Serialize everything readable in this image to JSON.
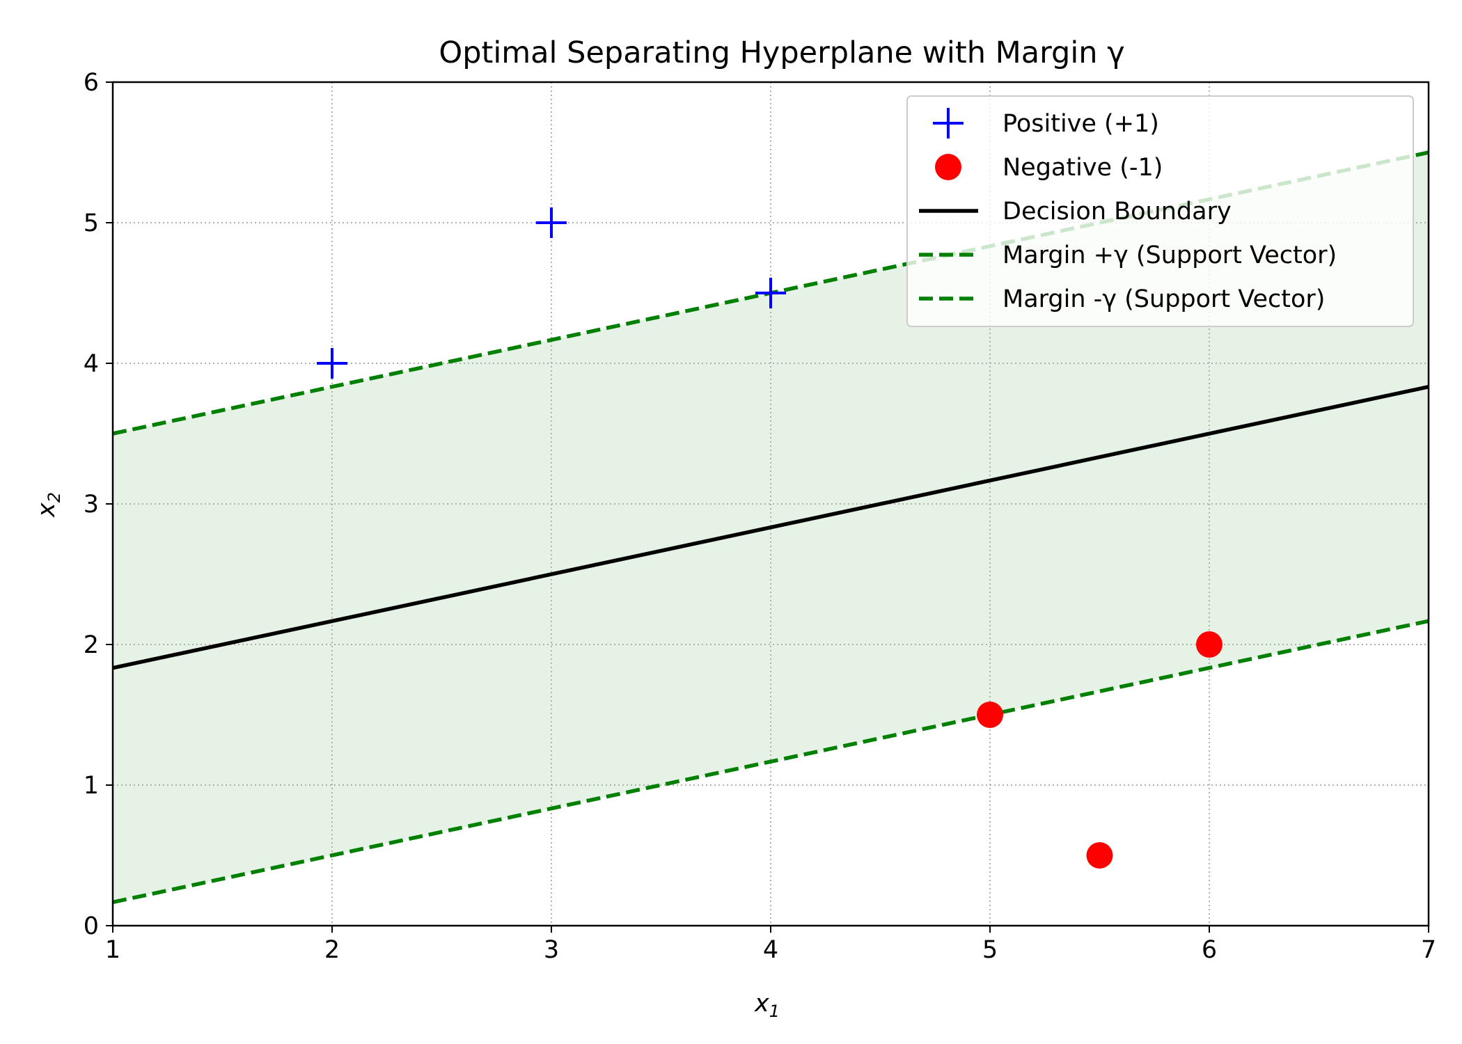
{
  "chart_data": {
    "type": "scatter",
    "title": "Optimal Separating Hyperplane with Margin γ",
    "xlabel": {
      "base": "x",
      "sub": "1"
    },
    "ylabel": {
      "base": "x",
      "sub": "2"
    },
    "xlim": [
      1,
      7
    ],
    "ylim": [
      0,
      6
    ],
    "xticks": [
      "1",
      "2",
      "3",
      "4",
      "5",
      "6",
      "7"
    ],
    "yticks": [
      "0",
      "1",
      "2",
      "3",
      "4",
      "5",
      "6"
    ],
    "grid": true,
    "legend_position": "top-right",
    "margin_fill_color": "#e5f2e5",
    "points": [
      {
        "series": "Positive (+1)",
        "marker": "plus",
        "color": "#0000ff",
        "data": [
          [
            2,
            4
          ],
          [
            3,
            5
          ],
          [
            4,
            4.5
          ]
        ]
      },
      {
        "series": "Negative (-1)",
        "marker": "circle",
        "color": "#ff0000",
        "data": [
          [
            5,
            1.5
          ],
          [
            6,
            2
          ],
          [
            5.5,
            0.5
          ]
        ]
      }
    ],
    "lines": [
      {
        "series": "Decision Boundary",
        "style": "solid",
        "color": "#000000",
        "x": [
          1,
          7
        ],
        "y": [
          1.833,
          3.833
        ]
      },
      {
        "series": "Margin +γ (Support Vector)",
        "style": "dashed",
        "color": "#008000",
        "x": [
          1,
          7
        ],
        "y": [
          3.5,
          5.5
        ]
      },
      {
        "series": "Margin -γ (Support Vector)",
        "style": "dashed",
        "color": "#008000",
        "x": [
          1,
          7
        ],
        "y": [
          0.167,
          2.167
        ]
      }
    ],
    "legend": [
      {
        "label": "Positive (+1)",
        "marker": "plus",
        "color": "#0000ff"
      },
      {
        "label": "Negative (-1)",
        "marker": "circle",
        "color": "#ff0000"
      },
      {
        "label": "Decision Boundary",
        "marker": "solid-line",
        "color": "#000000"
      },
      {
        "label": "Margin +γ (Support Vector)",
        "marker": "dashed-line",
        "color": "#008000"
      },
      {
        "label": "Margin -γ (Support Vector)",
        "marker": "dashed-line",
        "color": "#008000"
      }
    ]
  }
}
